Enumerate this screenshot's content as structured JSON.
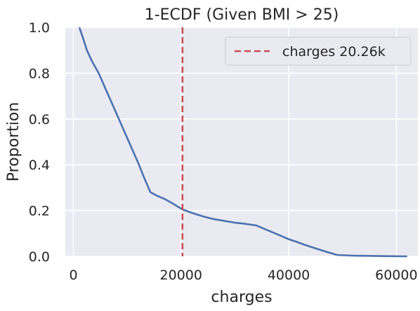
{
  "chart_data": {
    "type": "line",
    "title": "1-ECDF (Given BMI > 25)",
    "xlabel": "charges",
    "ylabel": "Proportion",
    "xlim": [
      -1500,
      64000
    ],
    "ylim": [
      0,
      1.0
    ],
    "xticks": [
      0,
      20000,
      40000,
      60000
    ],
    "xtick_labels": [
      "0",
      "20000",
      "40000",
      "60000"
    ],
    "yticks": [
      0.0,
      0.2,
      0.4,
      0.6,
      0.8,
      1.0
    ],
    "ytick_labels": [
      "0.0",
      "0.2",
      "0.4",
      "0.6",
      "0.8",
      "1.0"
    ],
    "grid": true,
    "legend_position": "top-right",
    "colors": {
      "background": "#eaeaf2",
      "grid": "#ffffff",
      "series": "#4c72b0",
      "threshold": "#c44e52"
    },
    "series": [
      {
        "x": [
          1100,
          1700,
          2500,
          3500,
          4700,
          6000,
          7500,
          9000,
          10500,
          12000,
          13200,
          14300,
          15500,
          17000,
          18500,
          20260,
          22000,
          24000,
          26000,
          28000,
          30000,
          32000,
          34000,
          35500,
          37000,
          38500,
          40000,
          41500,
          43000,
          45000,
          47000,
          49000,
          52000,
          55000,
          58000,
          62000
        ],
        "y": [
          1.0,
          0.96,
          0.9,
          0.85,
          0.8,
          0.73,
          0.65,
          0.57,
          0.49,
          0.41,
          0.34,
          0.28,
          0.265,
          0.25,
          0.23,
          0.205,
          0.19,
          0.175,
          0.163,
          0.155,
          0.147,
          0.142,
          0.135,
          0.12,
          0.105,
          0.09,
          0.075,
          0.063,
          0.05,
          0.035,
          0.02,
          0.006,
          0.003,
          0.002,
          0.001,
          0.0
        ]
      }
    ],
    "threshold": {
      "x": 20260,
      "label": "charges 20.26k"
    }
  }
}
